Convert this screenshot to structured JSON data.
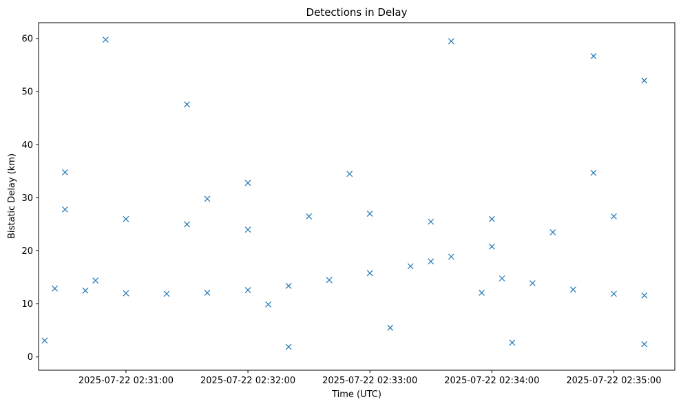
{
  "chart_data": {
    "type": "scatter",
    "title": "Detections in Delay",
    "xlabel": "Time (UTC)",
    "ylabel": "Bistatic Delay (km)",
    "marker": "x",
    "color": "#1f77b4",
    "grid": false,
    "x_ticks": [
      {
        "value": "2025-07-22 02:31:00",
        "label": "2025-07-22 02:31:00"
      },
      {
        "value": "2025-07-22 02:32:00",
        "label": "2025-07-22 02:32:00"
      },
      {
        "value": "2025-07-22 02:33:00",
        "label": "2025-07-22 02:33:00"
      },
      {
        "value": "2025-07-22 02:34:00",
        "label": "2025-07-22 02:34:00"
      },
      {
        "value": "2025-07-22 02:35:00",
        "label": "2025-07-22 02:35:00"
      }
    ],
    "y_ticks": [
      0,
      10,
      20,
      30,
      40,
      50,
      60
    ],
    "xlim": [
      "2025-07-22 02:30:17",
      "2025-07-22 02:35:30"
    ],
    "ylim": [
      -2.5,
      63
    ],
    "series": [
      {
        "points": [
          [
            "2025-07-22 02:30:25",
            12.9
          ],
          [
            "2025-07-22 02:30:40",
            12.5
          ],
          [
            "2025-07-22 02:31:00",
            12.0
          ],
          [
            "2025-07-22 02:31:20",
            11.9
          ],
          [
            "2025-07-22 02:31:40",
            12.1
          ],
          [
            "2025-07-22 02:32:00",
            12.6
          ],
          [
            "2025-07-22 02:32:20",
            13.4
          ],
          [
            "2025-07-22 02:32:40",
            14.5
          ],
          [
            "2025-07-22 02:33:00",
            15.8
          ],
          [
            "2025-07-22 02:33:20",
            17.1
          ],
          [
            "2025-07-22 02:33:30",
            18.0
          ],
          [
            "2025-07-22 02:33:40",
            18.9
          ],
          [
            "2025-07-22 02:34:00",
            20.8
          ],
          [
            "2025-07-22 02:34:05",
            14.8
          ],
          [
            "2025-07-22 02:34:20",
            13.9
          ],
          [
            "2025-07-22 02:34:40",
            12.7
          ],
          [
            "2025-07-22 02:35:00",
            11.9
          ],
          [
            "2025-07-22 02:35:15",
            11.6
          ],
          [
            "2025-07-22 02:30:30",
            27.8
          ],
          [
            "2025-07-22 02:31:00",
            26.0
          ],
          [
            "2025-07-22 02:31:30",
            25.0
          ],
          [
            "2025-07-22 02:32:00",
            24.0
          ],
          [
            "2025-07-22 02:32:30",
            26.5
          ],
          [
            "2025-07-22 02:33:00",
            27.0
          ],
          [
            "2025-07-22 02:33:30",
            25.5
          ],
          [
            "2025-07-22 02:34:00",
            26.0
          ],
          [
            "2025-07-22 02:34:30",
            23.5
          ],
          [
            "2025-07-22 02:35:00",
            26.5
          ],
          [
            "2025-07-22 02:31:40",
            29.8
          ],
          [
            "2025-07-22 02:32:00",
            32.8
          ],
          [
            "2025-07-22 02:30:30",
            34.8
          ],
          [
            "2025-07-22 02:32:50",
            34.5
          ],
          [
            "2025-07-22 02:34:50",
            34.7
          ],
          [
            "2025-07-22 02:30:45",
            14.4
          ],
          [
            "2025-07-22 02:32:10",
            9.9
          ],
          [
            "2025-07-22 02:33:55",
            12.1
          ],
          [
            "2025-07-22 02:30:20",
            3.1
          ],
          [
            "2025-07-22 02:30:50",
            59.8
          ],
          [
            "2025-07-22 02:31:30",
            47.6
          ],
          [
            "2025-07-22 02:32:20",
            1.9
          ],
          [
            "2025-07-22 02:33:10",
            5.5
          ],
          [
            "2025-07-22 02:33:40",
            59.5
          ],
          [
            "2025-07-22 02:34:10",
            2.7
          ],
          [
            "2025-07-22 02:34:50",
            56.7
          ],
          [
            "2025-07-22 02:35:15",
            2.4
          ],
          [
            "2025-07-22 02:35:15",
            52.1
          ]
        ]
      }
    ]
  }
}
